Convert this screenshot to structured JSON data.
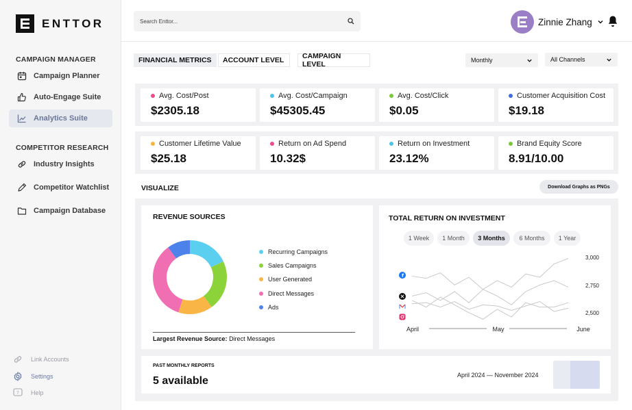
{
  "app": {
    "logo_text": "ENTTOR"
  },
  "sidebar": {
    "section1_title": "CAMPAIGN MANAGER",
    "section1_items": [
      {
        "label": "Campaign Planner",
        "icon": "calendar-icon"
      },
      {
        "label": "Auto-Engage Suite",
        "icon": "thumbs-up-icon"
      },
      {
        "label": "Analytics Suite",
        "icon": "chart-line-icon",
        "active": true
      }
    ],
    "section2_title": "COMPETITOR RESEARCH",
    "section2_items": [
      {
        "label": "Industry Insights",
        "icon": "link-icon"
      },
      {
        "label": "Competitor Watchlist",
        "icon": "pen-icon"
      },
      {
        "label": "Campaign Database",
        "icon": "folder-icon"
      }
    ],
    "footer_items": [
      {
        "label": "Link Accounts",
        "icon": "link-icon"
      },
      {
        "label": "Settings",
        "icon": "gear-icon"
      },
      {
        "label": "Help",
        "icon": "help-icon"
      }
    ]
  },
  "header": {
    "search_placeholder": "Search Enttor...",
    "user_name": "Zinnie Zhang"
  },
  "toolbar": {
    "tabs": [
      "FINANCIAL METRICS",
      "ACCOUNT LEVEL",
      "CAMPAIGN LEVEL"
    ],
    "period_select": "Monthly",
    "channel_select": "All Channels"
  },
  "metrics": [
    {
      "label": "Avg. Cost/Post",
      "value": "$2305.18",
      "color": "#ec4b8c"
    },
    {
      "label": "Avg. Cost/Campaign",
      "value": "$45305.45",
      "color": "#4fc3e8"
    },
    {
      "label": "Avg. Cost/Click",
      "value": "$0.05",
      "color": "#7cc83a"
    },
    {
      "label": "Customer Acquisition Cost",
      "value": "$19.18",
      "color": "#3f6ee0"
    },
    {
      "label": "Customer Lifetime Value",
      "value": "$25.18",
      "color": "#f5b63e"
    },
    {
      "label": "Return on Ad Spend",
      "value": "10.32$",
      "color": "#ec4b8c"
    },
    {
      "label": "Return on Investment",
      "value": "23.12%",
      "color": "#4fc3e8"
    },
    {
      "label": "Brand Equity Score",
      "value": "8.91/10.00",
      "color": "#7cc83a"
    }
  ],
  "visualize": {
    "title": "VISUALIZE",
    "download_label": "Download Graphs as PNGs"
  },
  "revenue": {
    "title": "REVENUE SOURCES",
    "largest_label": "Largest Revenue Source:",
    "largest_value": "Direct Messages"
  },
  "roi": {
    "title": "TOTAL RETURN ON INVESTMENT",
    "ranges": [
      "1 Week",
      "1 Month",
      "3 Months",
      "6 Months",
      "1 Year"
    ],
    "active_range": "3 Months"
  },
  "reports": {
    "label": "PAST MONTHLY REPORTS",
    "value": "5 available",
    "range": "April 2024 — November 2024"
  },
  "chart_data": [
    {
      "type": "pie",
      "title": "REVENUE SOURCES",
      "categories": [
        "Recurring Campaigns",
        "Sales Campaigns",
        "User Generated",
        "Direct Messages",
        "Ads"
      ],
      "values": [
        18,
        22,
        15,
        35,
        10
      ],
      "colors": [
        "#5bcff0",
        "#8cd33a",
        "#f9b546",
        "#ef6fb2",
        "#4d82ea"
      ]
    },
    {
      "type": "line",
      "title": "TOTAL RETURN ON INVESTMENT",
      "x": [
        "April",
        "",
        "",
        "",
        "",
        "",
        "May",
        "",
        "",
        "",
        "",
        "June"
      ],
      "x_ticks": [
        "April",
        "May",
        "June"
      ],
      "yticks": [
        "3,000",
        "2,750",
        "2,500"
      ],
      "ylim": [
        2400,
        3050
      ],
      "series": [
        {
          "name": "Facebook",
          "icon": "facebook-icon",
          "values": [
            2840,
            2820,
            2870,
            2760,
            2830,
            2720,
            2800,
            2740,
            2860,
            2830,
            2950,
            3000
          ]
        },
        {
          "name": "X",
          "icon": "x-icon",
          "values": [
            2660,
            2690,
            2620,
            2700,
            2600,
            2720,
            2660,
            2580,
            2700,
            2760,
            2800,
            2740
          ]
        },
        {
          "name": "Gmail",
          "icon": "gmail-icon",
          "values": [
            2620,
            2560,
            2650,
            2580,
            2510,
            2450,
            2540,
            2470,
            2600,
            2560,
            2560,
            2600
          ]
        },
        {
          "name": "Instagram",
          "icon": "instagram-icon",
          "values": [
            2590,
            2600,
            2560,
            2610,
            2540,
            2580,
            2570,
            2530,
            2570,
            2610,
            2520,
            2550
          ]
        }
      ]
    }
  ]
}
